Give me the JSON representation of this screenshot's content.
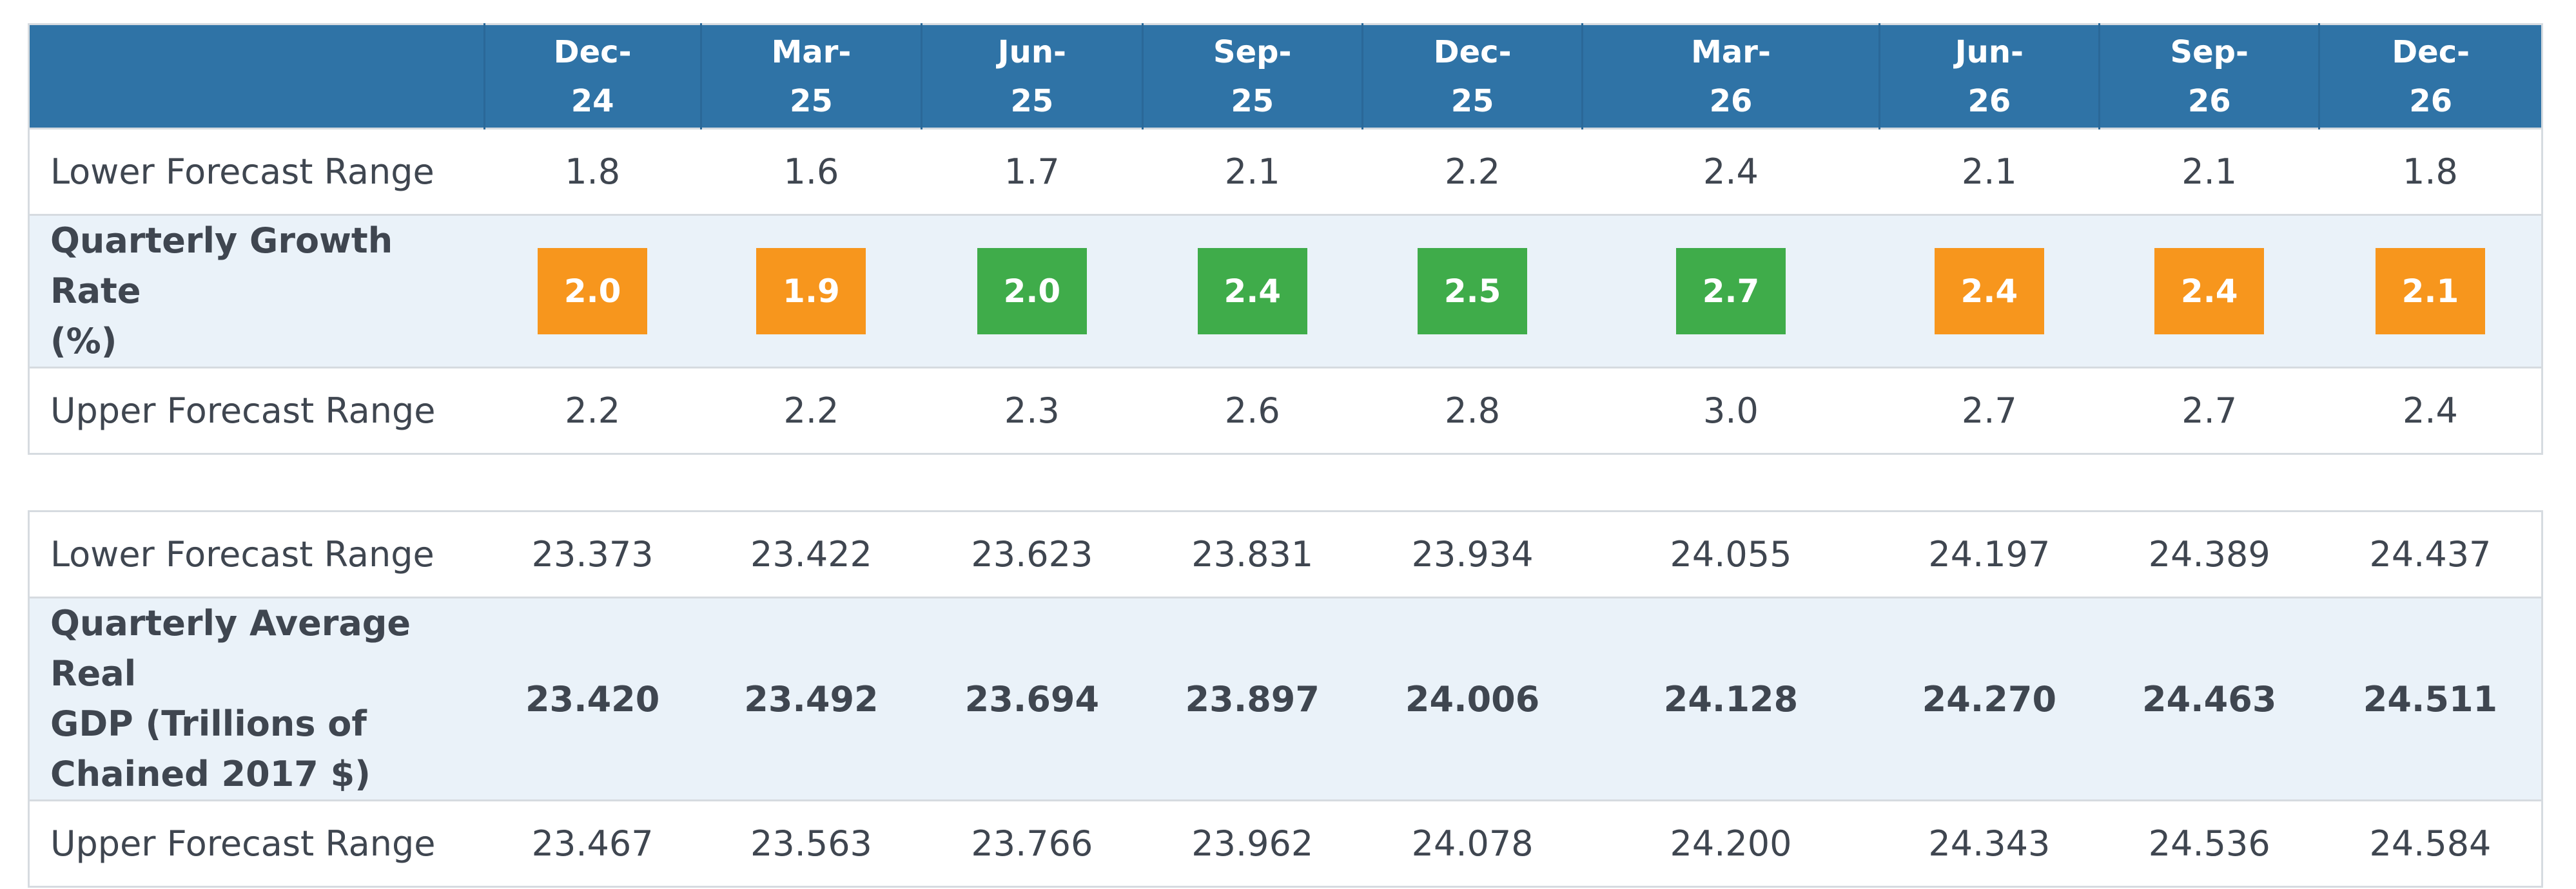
{
  "colors": {
    "header_bg": "#2f73a6",
    "highlight_row_bg": "#eaf2f9",
    "badge_orange": "#f7961d",
    "badge_green": "#3fac4a"
  },
  "columns": [
    {
      "line1": "Dec-",
      "line2": "24"
    },
    {
      "line1": "Mar-",
      "line2": "25"
    },
    {
      "line1": "Jun-",
      "line2": "25"
    },
    {
      "line1": "Sep-",
      "line2": "25"
    },
    {
      "line1": "Dec-",
      "line2": "25"
    },
    {
      "line1": "Mar-",
      "line2": "26"
    },
    {
      "line1": "Jun-",
      "line2": "26"
    },
    {
      "line1": "Sep-",
      "line2": "26"
    },
    {
      "line1": "Dec-",
      "line2": "26"
    }
  ],
  "growth_table": {
    "lower": {
      "label": "Lower Forecast Range",
      "values": [
        "1.8",
        "1.6",
        "1.7",
        "2.1",
        "2.2",
        "2.4",
        "2.1",
        "2.1",
        "1.8"
      ]
    },
    "growth": {
      "label_line1": "Quarterly Growth Rate",
      "label_line2": "(%)",
      "values": [
        "2.0",
        "1.9",
        "2.0",
        "2.4",
        "2.5",
        "2.7",
        "2.4",
        "2.4",
        "2.1"
      ],
      "badge_colors": [
        "orange",
        "orange",
        "green",
        "green",
        "green",
        "green",
        "orange",
        "orange",
        "orange"
      ]
    },
    "upper": {
      "label": "Upper Forecast Range",
      "values": [
        "2.2",
        "2.2",
        "2.3",
        "2.6",
        "2.8",
        "3.0",
        "2.7",
        "2.7",
        "2.4"
      ]
    }
  },
  "gdp_table": {
    "lower": {
      "label": "Lower Forecast Range",
      "values": [
        "23.373",
        "23.422",
        "23.623",
        "23.831",
        "23.934",
        "24.055",
        "24.197",
        "24.389",
        "24.437"
      ]
    },
    "gdp": {
      "label_line1": "Quarterly Average Real",
      "label_line2": "GDP (Trillions of",
      "label_line3": "Chained 2017 $)",
      "values": [
        "23.420",
        "23.492",
        "23.694",
        "23.897",
        "24.006",
        "24.128",
        "24.270",
        "24.463",
        "24.511"
      ]
    },
    "upper": {
      "label": "Upper Forecast Range",
      "values": [
        "23.467",
        "23.563",
        "23.766",
        "23.962",
        "24.078",
        "24.200",
        "24.343",
        "24.536",
        "24.584"
      ]
    }
  }
}
